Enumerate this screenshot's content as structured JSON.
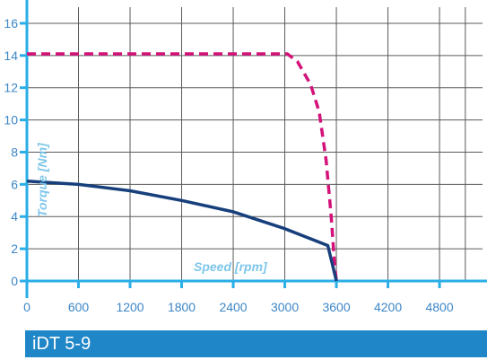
{
  "chart_data": {
    "type": "line",
    "xlabel": "Speed [rpm]",
    "ylabel": "Torque [Nm]",
    "xlim": [
      0,
      5300
    ],
    "ylim": [
      0,
      17
    ],
    "x_ticks": [
      0,
      600,
      1200,
      1800,
      2400,
      3000,
      3600,
      4200,
      4800
    ],
    "y_ticks": [
      0,
      2,
      4,
      6,
      8,
      10,
      12,
      14,
      16
    ],
    "grid": true,
    "series": [
      {
        "style": "dashed",
        "color": "#d4127a",
        "points": [
          [
            0,
            14.1
          ],
          [
            3030,
            14.1
          ],
          [
            3150,
            13.6
          ],
          [
            3300,
            12.2
          ],
          [
            3400,
            10.5
          ],
          [
            3480,
            7.5
          ],
          [
            3540,
            4.0
          ],
          [
            3580,
            1.0
          ],
          [
            3600,
            0
          ]
        ]
      },
      {
        "style": "solid",
        "color": "#173f7c",
        "points": [
          [
            0,
            6.2
          ],
          [
            600,
            6.0
          ],
          [
            1200,
            5.6
          ],
          [
            1800,
            5.0
          ],
          [
            2400,
            4.3
          ],
          [
            3000,
            3.25
          ],
          [
            3500,
            2.2
          ],
          [
            3600,
            0
          ]
        ]
      }
    ]
  },
  "footer": {
    "label": "iDT 5-9"
  },
  "colors": {
    "axis": "#2aaee8",
    "grid": "#5a5a5a",
    "tick_text": "#3d86c6",
    "axis_title": "#7ec6ea",
    "footer_bg": "#1f86c8"
  }
}
